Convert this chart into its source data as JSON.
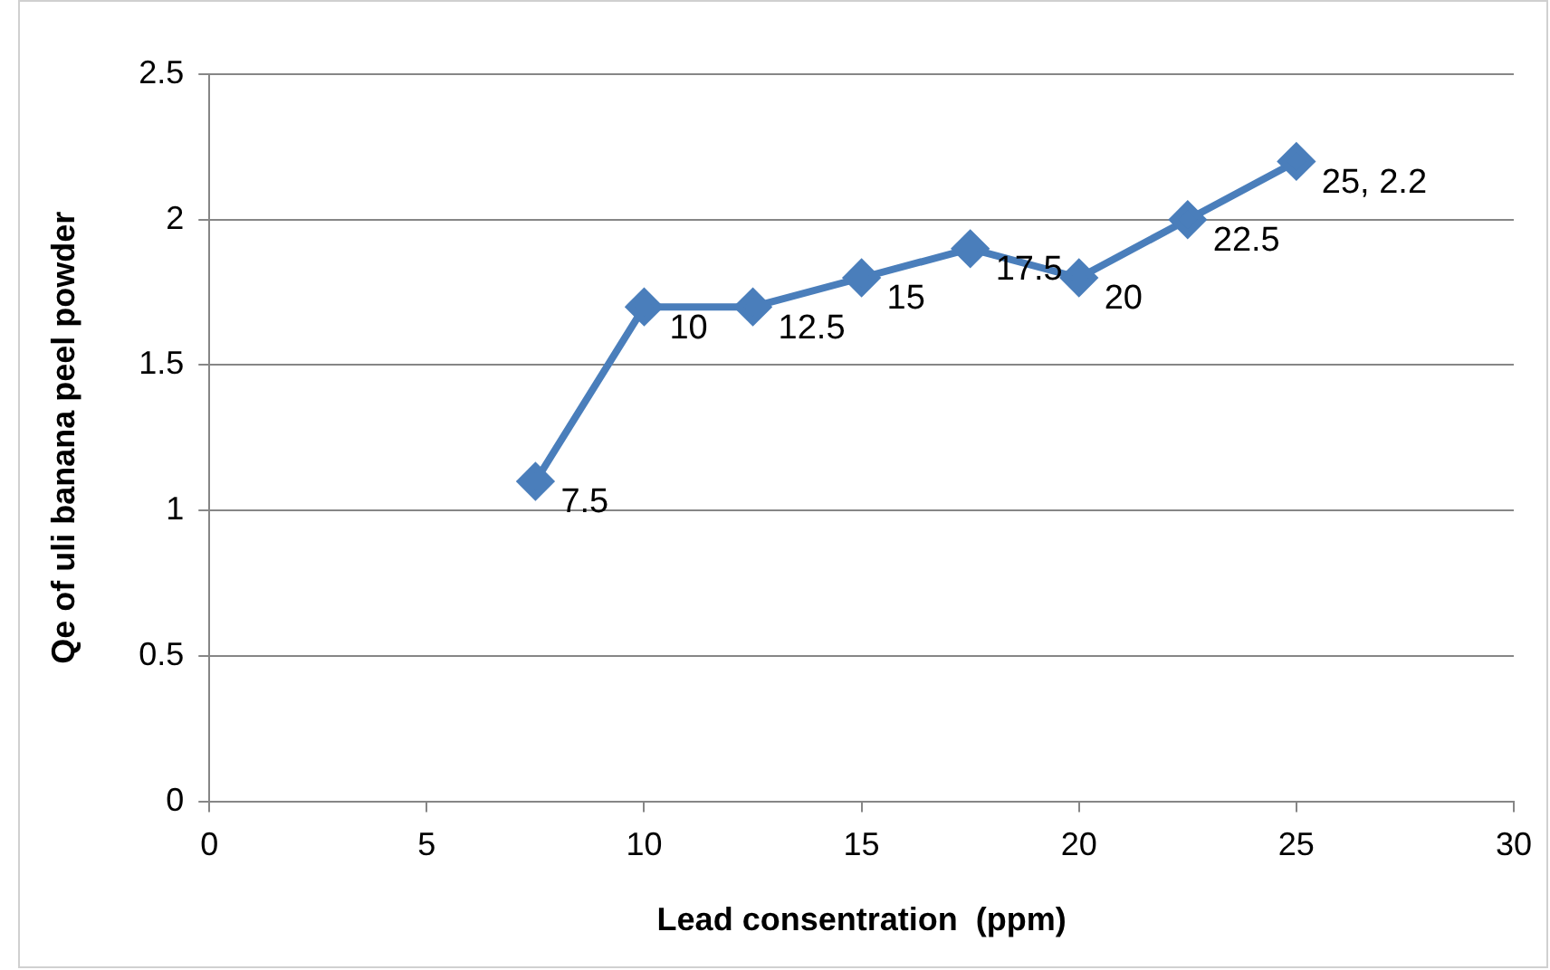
{
  "chart_data": {
    "type": "line",
    "xlabel": "Lead consentration  (ppm)",
    "ylabel": "Qe of uli banana peel powder",
    "x": [
      7.5,
      10,
      12.5,
      15,
      17.5,
      20,
      22.5,
      25
    ],
    "series": [
      {
        "color": "#4a7ebb",
        "values": [
          1.1,
          1.7,
          1.7,
          1.8,
          1.9,
          1.8,
          2.0,
          2.2
        ]
      }
    ],
    "annotations": [
      {
        "text": "7.5",
        "x": 7.5,
        "y": 1.1
      },
      {
        "text": "10",
        "x": 10,
        "y": 1.7
      },
      {
        "text": "12.5",
        "x": 12.5,
        "y": 1.7
      },
      {
        "text": "15",
        "x": 15,
        "y": 1.8
      },
      {
        "text": "17.5",
        "x": 17.5,
        "y": 1.9
      },
      {
        "text": "20",
        "x": 20,
        "y": 1.8
      },
      {
        "text": "22.5",
        "x": 22.5,
        "y": 2.0
      },
      {
        "text": "25, 2.2",
        "x": 25,
        "y": 2.2
      }
    ],
    "xlim": [
      0,
      30
    ],
    "xticks": [
      0,
      5,
      10,
      15,
      20,
      25,
      30
    ],
    "ylim": [
      0,
      2.5
    ],
    "yticks": [
      0,
      0.5,
      1,
      1.5,
      2,
      2.5
    ],
    "grid": "y",
    "legend": false,
    "marker": "diamond",
    "line_style": "solid"
  }
}
